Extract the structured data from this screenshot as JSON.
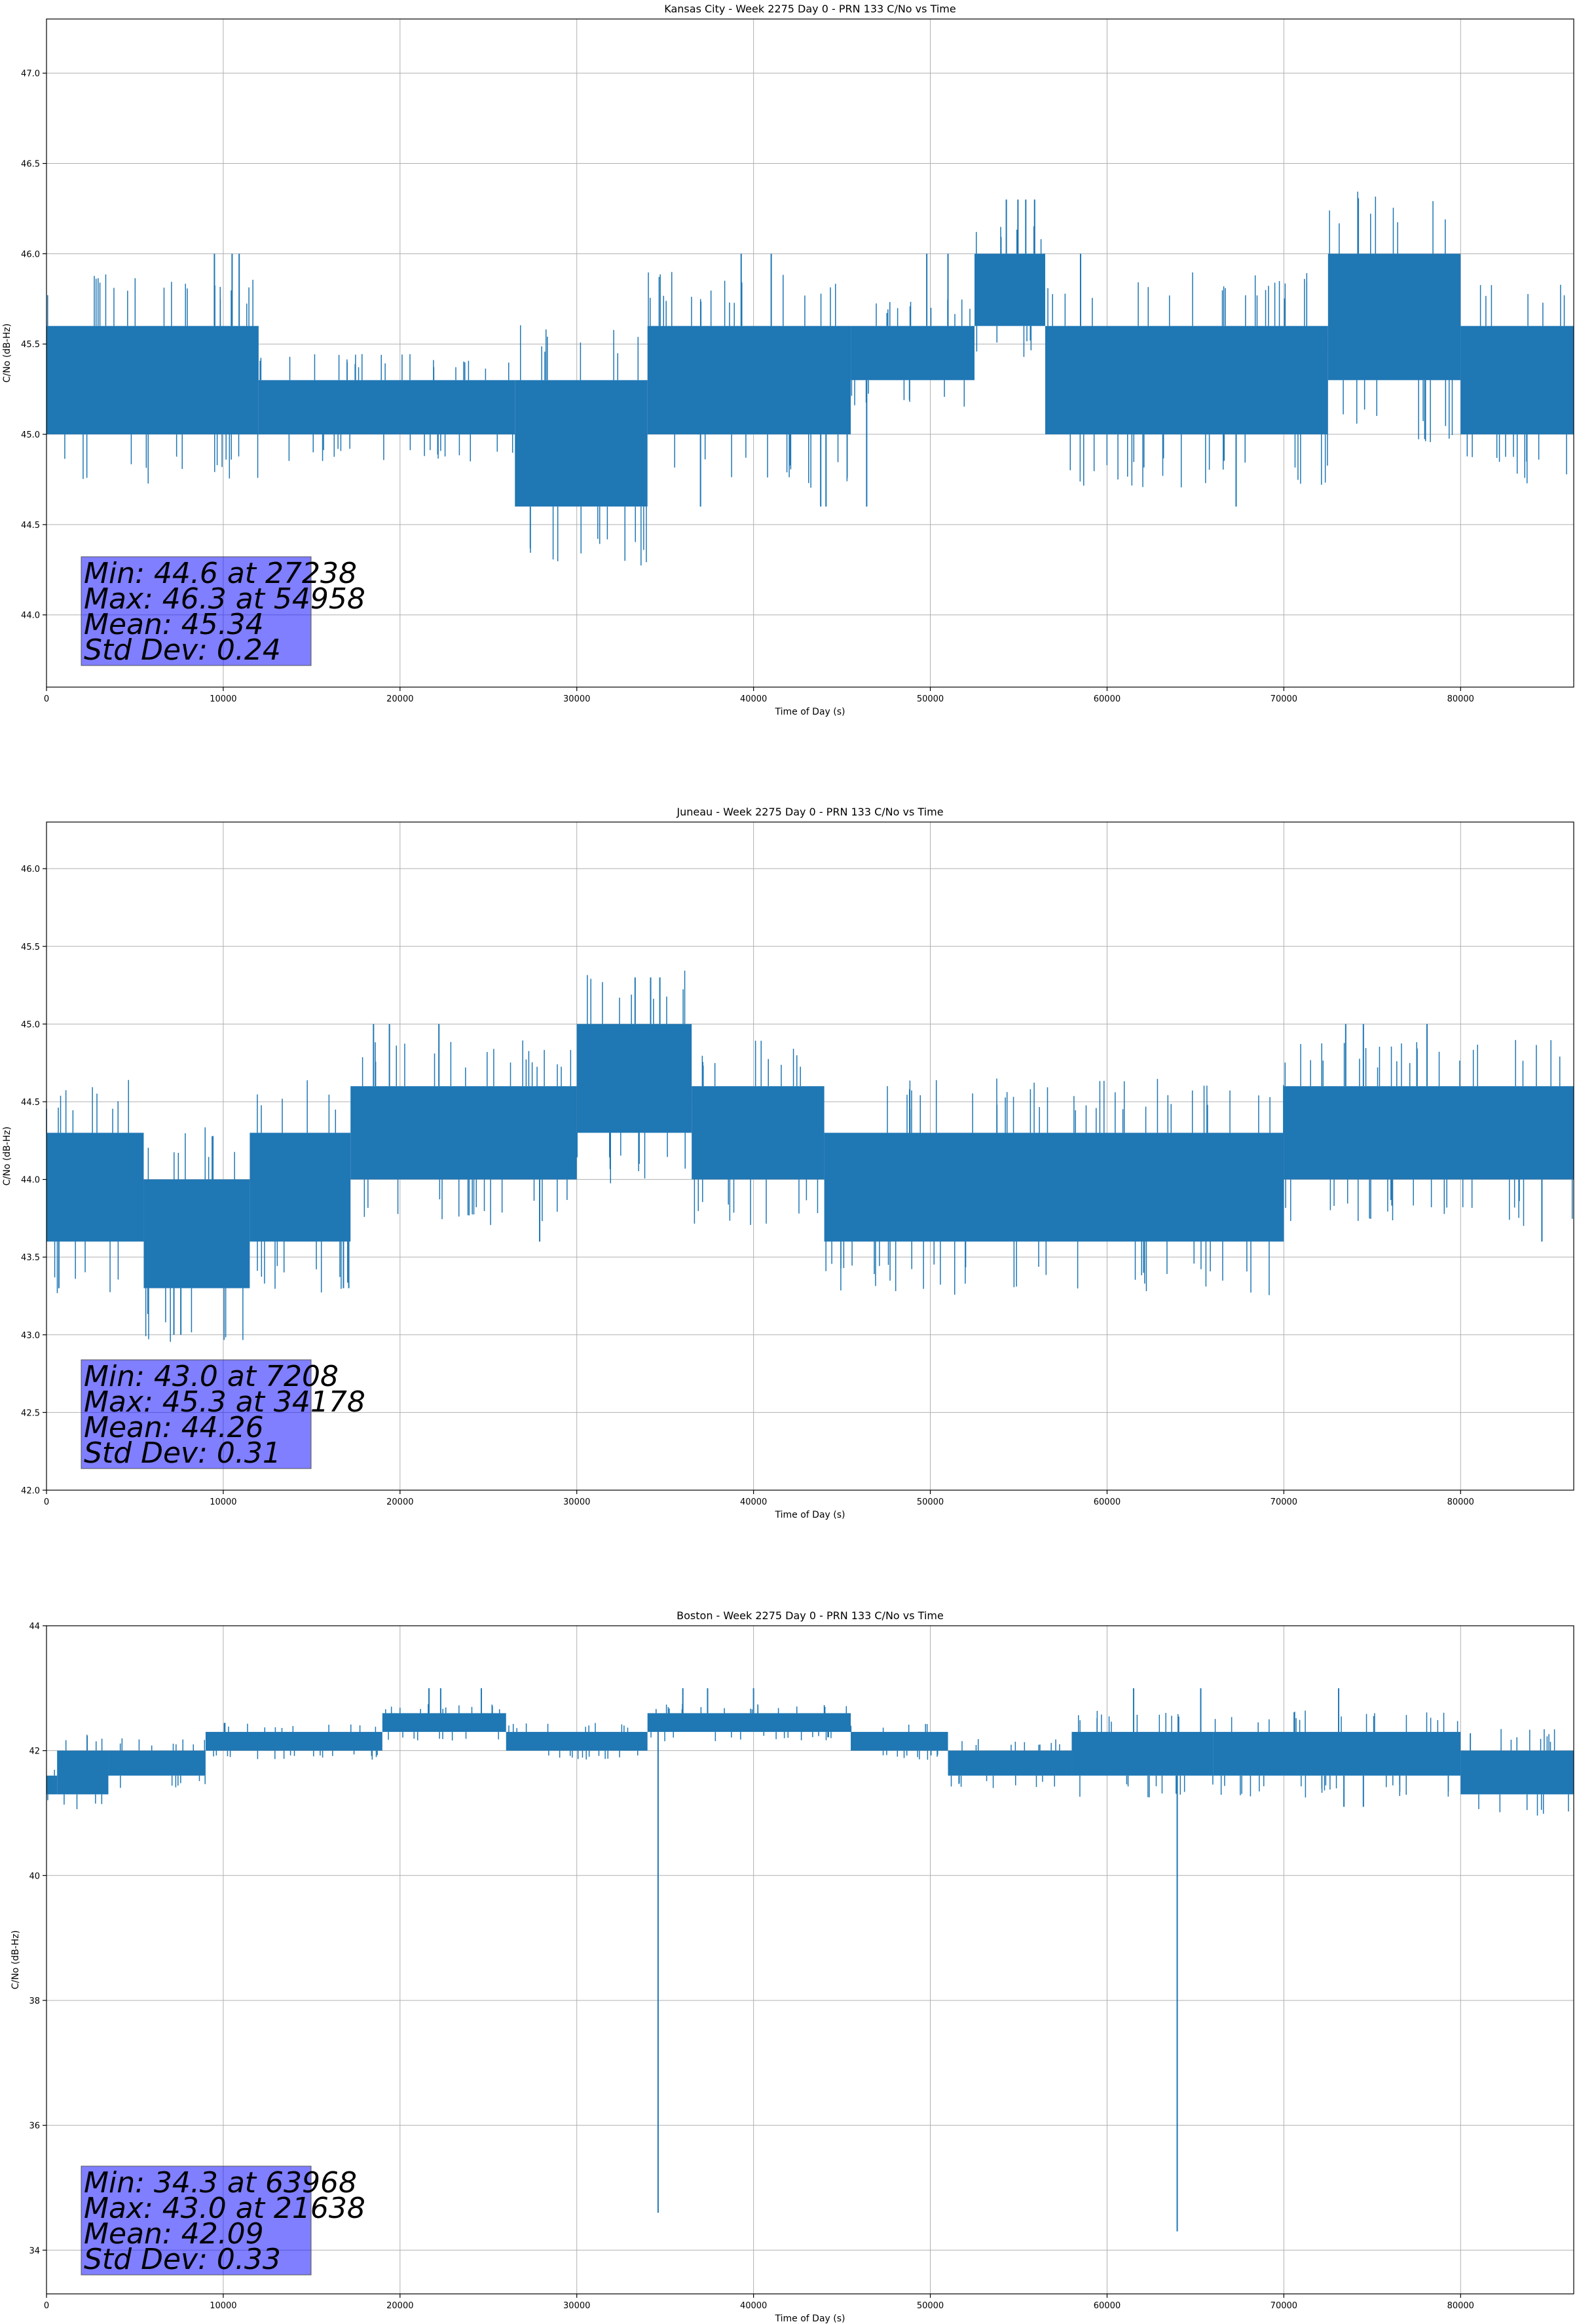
{
  "chart_data": [
    {
      "type": "line",
      "title": "Kansas City - Week 2275 Day 0 - PRN 133 C/No vs Time",
      "xlabel": "Time of Day (s)",
      "ylabel": "C/No (dB-Hz)",
      "xlim": [
        0,
        86400
      ],
      "ylim": [
        43.6,
        47.3
      ],
      "xticks": [
        0,
        10000,
        20000,
        30000,
        40000,
        50000,
        60000,
        70000,
        80000
      ],
      "yticks": [
        44.0,
        44.5,
        45.0,
        45.5,
        46.0,
        46.5,
        47.0
      ],
      "ytick_decimals": 1,
      "grid": true,
      "series_color": "#1f77b4",
      "stats": {
        "min": "Min: 44.6 at 27238",
        "max": "Max: 46.3 at 54958",
        "mean": "Mean: 45.34",
        "std": "Std Dev: 0.24"
      },
      "segments": [
        {
          "x": [
            0,
            12000
          ],
          "low": 45.0,
          "high": 45.6
        },
        {
          "x": [
            12000,
            26500
          ],
          "low": 45.0,
          "high": 45.3
        },
        {
          "x": [
            26500,
            34000
          ],
          "low": 44.6,
          "high": 45.3
        },
        {
          "x": [
            34000,
            45500
          ],
          "low": 45.0,
          "high": 45.6
        },
        {
          "x": [
            45500,
            52500
          ],
          "low": 45.3,
          "high": 45.6
        },
        {
          "x": [
            52500,
            56500
          ],
          "low": 45.6,
          "high": 46.0
        },
        {
          "x": [
            56500,
            72500
          ],
          "low": 45.0,
          "high": 45.6
        },
        {
          "x": [
            72500,
            80000
          ],
          "low": 45.3,
          "high": 46.0
        },
        {
          "x": [
            80000,
            86400
          ],
          "low": 45.0,
          "high": 45.6
        }
      ],
      "spikes": [
        {
          "x": 9500,
          "high": 46.0
        },
        {
          "x": 10500,
          "high": 46.0
        },
        {
          "x": 10900,
          "high": 46.0
        },
        {
          "x": 27238,
          "low": 44.6
        },
        {
          "x": 28800,
          "low": 44.6
        },
        {
          "x": 33500,
          "low": 44.6
        },
        {
          "x": 37000,
          "low": 44.6
        },
        {
          "x": 39300,
          "high": 46.0
        },
        {
          "x": 41000,
          "high": 46.0
        },
        {
          "x": 43800,
          "low": 44.6
        },
        {
          "x": 44100,
          "low": 44.6
        },
        {
          "x": 46400,
          "low": 44.6
        },
        {
          "x": 49800,
          "high": 46.0
        },
        {
          "x": 51000,
          "high": 46.0
        },
        {
          "x": 54300,
          "high": 46.3
        },
        {
          "x": 54958,
          "high": 46.3
        },
        {
          "x": 55400,
          "high": 46.3
        },
        {
          "x": 55900,
          "high": 46.3
        },
        {
          "x": 58500,
          "high": 46.0
        },
        {
          "x": 67300,
          "low": 44.6
        }
      ]
    },
    {
      "type": "line",
      "title": "Juneau - Week 2275 Day 0 - PRN 133 C/No vs Time",
      "xlabel": "Time of Day (s)",
      "ylabel": "C/No (dB-Hz)",
      "xlim": [
        0,
        86400
      ],
      "ylim": [
        42.0,
        46.3
      ],
      "xticks": [
        0,
        10000,
        20000,
        30000,
        40000,
        50000,
        60000,
        70000,
        80000
      ],
      "yticks": [
        42.0,
        42.5,
        43.0,
        43.5,
        44.0,
        44.5,
        45.0,
        45.5,
        46.0
      ],
      "ytick_decimals": 1,
      "grid": true,
      "series_color": "#1f77b4",
      "stats": {
        "min": "Min: 43.0 at 7208",
        "max": "Max: 45.3 at 34178",
        "mean": "Mean: 44.26",
        "std": "Std Dev: 0.31"
      },
      "segments": [
        {
          "x": [
            0,
            5500
          ],
          "low": 43.6,
          "high": 44.3
        },
        {
          "x": [
            5500,
            11500
          ],
          "low": 43.3,
          "high": 44.0
        },
        {
          "x": [
            11500,
            17200
          ],
          "low": 43.6,
          "high": 44.3
        },
        {
          "x": [
            17200,
            30000
          ],
          "low": 44.0,
          "high": 44.6
        },
        {
          "x": [
            30000,
            36500
          ],
          "low": 44.3,
          "high": 45.0
        },
        {
          "x": [
            36500,
            44000
          ],
          "low": 44.0,
          "high": 44.6
        },
        {
          "x": [
            44000,
            70000
          ],
          "low": 43.6,
          "high": 44.3
        },
        {
          "x": [
            70000,
            86400
          ],
          "low": 44.0,
          "high": 44.6
        }
      ],
      "spikes": [
        {
          "x": 700,
          "low": 43.3
        },
        {
          "x": 7208,
          "low": 43.0
        },
        {
          "x": 7600,
          "low": 43.0
        },
        {
          "x": 16800,
          "low": 43.3
        },
        {
          "x": 17100,
          "low": 43.3
        },
        {
          "x": 18500,
          "high": 45.0
        },
        {
          "x": 19400,
          "high": 45.0
        },
        {
          "x": 22200,
          "high": 45.0
        },
        {
          "x": 27900,
          "low": 43.6
        },
        {
          "x": 33300,
          "high": 45.3
        },
        {
          "x": 34178,
          "high": 45.3
        },
        {
          "x": 34700,
          "high": 45.3
        },
        {
          "x": 45400,
          "low": 43.6
        },
        {
          "x": 69600,
          "low": 43.6
        },
        {
          "x": 73500,
          "high": 45.0
        },
        {
          "x": 74500,
          "high": 45.0
        },
        {
          "x": 78100,
          "high": 45.0
        },
        {
          "x": 84600,
          "low": 43.6
        }
      ]
    },
    {
      "type": "line",
      "title": "Boston - Week 2275 Day 0 - PRN 133 C/No vs Time",
      "xlabel": "Time of Day (s)",
      "ylabel": "C/No (dB-Hz)",
      "xlim": [
        0,
        86400
      ],
      "ylim": [
        33.3,
        44
      ],
      "xticks": [
        0,
        10000,
        20000,
        30000,
        40000,
        50000,
        60000,
        70000,
        80000
      ],
      "yticks": [
        34,
        36,
        38,
        40,
        42,
        44
      ],
      "ytick_decimals": 0,
      "grid": true,
      "series_color": "#1f77b4",
      "stats": {
        "min": "Min: 34.3 at 63968",
        "max": "Max: 43.0 at 21638",
        "mean": "Mean: 42.09",
        "std": "Std Dev: 0.33"
      },
      "segments": [
        {
          "x": [
            0,
            600
          ],
          "low": 41.3,
          "high": 41.6
        },
        {
          "x": [
            600,
            3500
          ],
          "low": 41.3,
          "high": 42.0
        },
        {
          "x": [
            3500,
            9000
          ],
          "low": 41.6,
          "high": 42.0
        },
        {
          "x": [
            9000,
            19000
          ],
          "low": 42.0,
          "high": 42.3
        },
        {
          "x": [
            19000,
            26000
          ],
          "low": 42.3,
          "high": 42.6
        },
        {
          "x": [
            26000,
            34000
          ],
          "low": 42.0,
          "high": 42.3
        },
        {
          "x": [
            34000,
            45500
          ],
          "low": 42.3,
          "high": 42.6
        },
        {
          "x": [
            45500,
            51000
          ],
          "low": 42.0,
          "high": 42.3
        },
        {
          "x": [
            51000,
            58000
          ],
          "low": 41.6,
          "high": 42.0
        },
        {
          "x": [
            58000,
            66000
          ],
          "low": 41.6,
          "high": 42.3
        },
        {
          "x": [
            66000,
            80000
          ],
          "low": 41.6,
          "high": 42.3
        },
        {
          "x": [
            80000,
            86400
          ],
          "low": 41.3,
          "high": 42.0
        }
      ],
      "spikes": [
        {
          "x": 21638,
          "high": 43.0
        },
        {
          "x": 22300,
          "high": 43.0
        },
        {
          "x": 24600,
          "high": 43.0
        },
        {
          "x": 36000,
          "high": 43.0
        },
        {
          "x": 37400,
          "high": 43.0
        },
        {
          "x": 40000,
          "high": 43.0
        },
        {
          "x": 34600,
          "low": 34.6
        },
        {
          "x": 63968,
          "low": 34.3
        },
        {
          "x": 61500,
          "high": 43.0
        },
        {
          "x": 65300,
          "high": 43.0
        },
        {
          "x": 73100,
          "high": 43.0
        },
        {
          "x": 73400,
          "low": 41.1
        },
        {
          "x": 74500,
          "low": 41.1
        }
      ]
    }
  ]
}
